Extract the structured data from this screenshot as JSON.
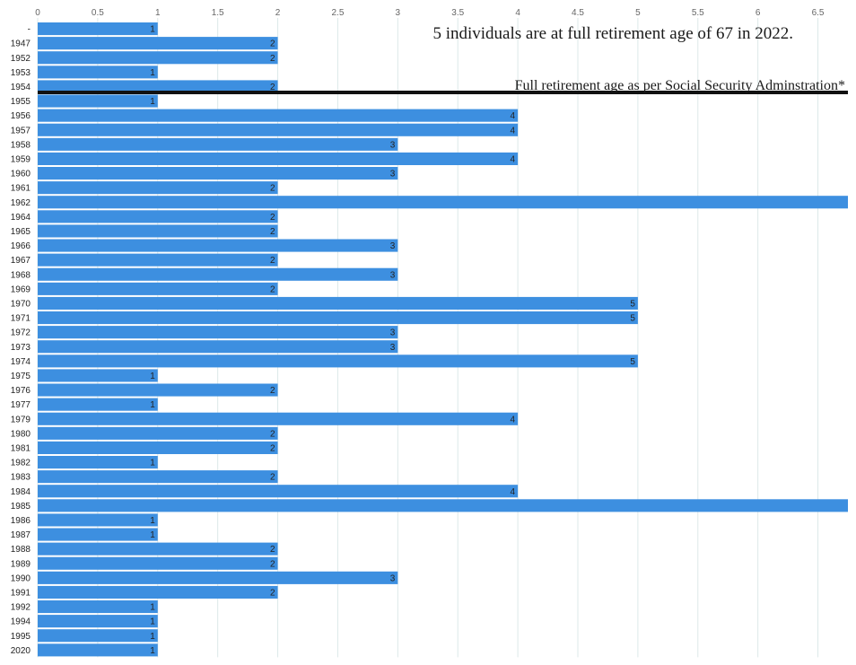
{
  "chart_data": {
    "type": "bar",
    "orientation": "horizontal",
    "categories": [
      "-",
      "1947",
      "1952",
      "1953",
      "1954",
      "1955",
      "1956",
      "1957",
      "1958",
      "1959",
      "1960",
      "1961",
      "1962",
      "1964",
      "1965",
      "1966",
      "1967",
      "1968",
      "1969",
      "1970",
      "1971",
      "1972",
      "1973",
      "1974",
      "1975",
      "1976",
      "1977",
      "1979",
      "1980",
      "1981",
      "1982",
      "1983",
      "1984",
      "1985",
      "1986",
      "1987",
      "1988",
      "1989",
      "1990",
      "1991",
      "1992",
      "1994",
      "1995",
      "2020"
    ],
    "values": [
      1,
      2,
      2,
      1,
      2,
      1,
      4,
      4,
      3,
      4,
      3,
      2,
      7,
      2,
      2,
      3,
      2,
      3,
      2,
      5,
      5,
      3,
      3,
      5,
      1,
      2,
      1,
      4,
      2,
      2,
      1,
      2,
      4,
      7,
      1,
      1,
      2,
      2,
      3,
      2,
      1,
      1,
      1,
      1
    ],
    "data_labels": [
      "1",
      "2",
      "2",
      "1",
      "2",
      "1",
      "4",
      "4",
      "3",
      "4",
      "3",
      "2",
      "",
      "2",
      "2",
      "3",
      "2",
      "3",
      "2",
      "5",
      "5",
      "3",
      "3",
      "5",
      "1",
      "2",
      "1",
      "4",
      "2",
      "2",
      "1",
      "2",
      "4",
      "",
      "1",
      "1",
      "2",
      "2",
      "3",
      "2",
      "1",
      "1",
      "1",
      "1"
    ],
    "x_ticks": [
      "0",
      "0.5",
      "1",
      "1.5",
      "2",
      "2.5",
      "3",
      "3.5",
      "4",
      "4.5",
      "5",
      "5.5",
      "6",
      "6.5"
    ],
    "xlim": [
      0,
      6.75
    ],
    "x_axis_position": "top",
    "grid": true,
    "bar_color": "#3d8fe0",
    "grid_color": "#dce9e9",
    "reference_line": {
      "after_category": "1954",
      "color": "#111111"
    },
    "annotations": [
      {
        "text": "5 individuals are at full retirement age of 67 in 2022."
      },
      {
        "text": "Full retirement age as per Social Security Adminstration*"
      }
    ]
  }
}
